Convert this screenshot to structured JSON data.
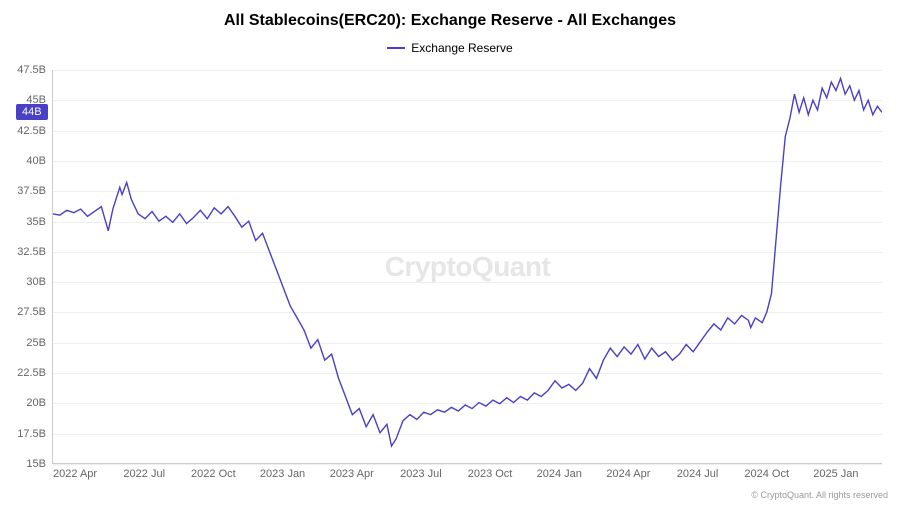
{
  "chart": {
    "type": "line",
    "title": "All Stablecoins(ERC20): Exchange Reserve - All Exchanges",
    "title_fontsize": 16,
    "title_color": "#000000",
    "legend": {
      "label": "Exchange Reserve",
      "color": "#4a3fc7",
      "position": "top-center"
    },
    "watermark": "CryptoQuant",
    "watermark_color": "#e6e6e6",
    "background_color": "#ffffff",
    "grid_color": "#eeeeee",
    "axis_color": "#cccccc",
    "tick_label_color": "#666666",
    "tick_fontsize": 11,
    "line_color": "#4a3fc7",
    "line_width": 1.4,
    "y_axis": {
      "min": 15,
      "max": 47.5,
      "unit_suffix": "B",
      "ticks": [
        15,
        17.5,
        20,
        22.5,
        25,
        27.5,
        30,
        32.5,
        35,
        37.5,
        40,
        42.5,
        45,
        47.5
      ],
      "tick_labels": [
        "15B",
        "17.5B",
        "20B",
        "22.5B",
        "25B",
        "27.5B",
        "30B",
        "32.5B",
        "35B",
        "37.5B",
        "40B",
        "42.5B",
        "45B",
        "47.5B"
      ]
    },
    "x_axis": {
      "min": 0,
      "max": 36,
      "ticks": [
        1,
        4,
        7,
        10,
        13,
        16,
        19,
        22,
        25,
        28,
        31,
        34
      ],
      "tick_labels": [
        "2022 Apr",
        "2022 Jul",
        "2022 Oct",
        "2023 Jan",
        "2023 Apr",
        "2023 Jul",
        "2023 Oct",
        "2024 Jan",
        "2024 Apr",
        "2024 Jul",
        "2024 Oct",
        "2025 Jan"
      ]
    },
    "current_value": {
      "label": "44B",
      "value": 44,
      "badge_color": "#4a3fc7",
      "text_color": "#ffffff"
    },
    "series": [
      {
        "x": 0.0,
        "y": 35.6
      },
      {
        "x": 0.3,
        "y": 35.5
      },
      {
        "x": 0.6,
        "y": 35.9
      },
      {
        "x": 0.9,
        "y": 35.7
      },
      {
        "x": 1.2,
        "y": 36.0
      },
      {
        "x": 1.5,
        "y": 35.4
      },
      {
        "x": 1.8,
        "y": 35.8
      },
      {
        "x": 2.1,
        "y": 36.2
      },
      {
        "x": 2.4,
        "y": 34.2
      },
      {
        "x": 2.6,
        "y": 36.0
      },
      {
        "x": 2.9,
        "y": 37.8
      },
      {
        "x": 3.0,
        "y": 37.2
      },
      {
        "x": 3.2,
        "y": 38.2
      },
      {
        "x": 3.4,
        "y": 36.8
      },
      {
        "x": 3.7,
        "y": 35.6
      },
      {
        "x": 4.0,
        "y": 35.2
      },
      {
        "x": 4.3,
        "y": 35.8
      },
      {
        "x": 4.6,
        "y": 35.0
      },
      {
        "x": 4.9,
        "y": 35.4
      },
      {
        "x": 5.2,
        "y": 34.9
      },
      {
        "x": 5.5,
        "y": 35.6
      },
      {
        "x": 5.8,
        "y": 34.8
      },
      {
        "x": 6.1,
        "y": 35.3
      },
      {
        "x": 6.4,
        "y": 35.9
      },
      {
        "x": 6.7,
        "y": 35.2
      },
      {
        "x": 7.0,
        "y": 36.1
      },
      {
        "x": 7.3,
        "y": 35.6
      },
      {
        "x": 7.6,
        "y": 36.2
      },
      {
        "x": 7.9,
        "y": 35.4
      },
      {
        "x": 8.2,
        "y": 34.5
      },
      {
        "x": 8.5,
        "y": 35.0
      },
      {
        "x": 8.8,
        "y": 33.4
      },
      {
        "x": 9.1,
        "y": 34.0
      },
      {
        "x": 9.4,
        "y": 32.5
      },
      {
        "x": 9.7,
        "y": 31.0
      },
      {
        "x": 10.0,
        "y": 29.5
      },
      {
        "x": 10.3,
        "y": 28.0
      },
      {
        "x": 10.6,
        "y": 27.0
      },
      {
        "x": 10.9,
        "y": 26.0
      },
      {
        "x": 11.2,
        "y": 24.5
      },
      {
        "x": 11.5,
        "y": 25.2
      },
      {
        "x": 11.8,
        "y": 23.5
      },
      {
        "x": 12.1,
        "y": 24.0
      },
      {
        "x": 12.4,
        "y": 22.0
      },
      {
        "x": 12.7,
        "y": 20.5
      },
      {
        "x": 13.0,
        "y": 19.0
      },
      {
        "x": 13.3,
        "y": 19.5
      },
      {
        "x": 13.6,
        "y": 18.0
      },
      {
        "x": 13.9,
        "y": 19.0
      },
      {
        "x": 14.2,
        "y": 17.5
      },
      {
        "x": 14.5,
        "y": 18.2
      },
      {
        "x": 14.7,
        "y": 16.4
      },
      {
        "x": 14.9,
        "y": 17.0
      },
      {
        "x": 15.2,
        "y": 18.5
      },
      {
        "x": 15.5,
        "y": 19.0
      },
      {
        "x": 15.8,
        "y": 18.6
      },
      {
        "x": 16.1,
        "y": 19.2
      },
      {
        "x": 16.4,
        "y": 19.0
      },
      {
        "x": 16.7,
        "y": 19.4
      },
      {
        "x": 17.0,
        "y": 19.2
      },
      {
        "x": 17.3,
        "y": 19.6
      },
      {
        "x": 17.6,
        "y": 19.3
      },
      {
        "x": 17.9,
        "y": 19.8
      },
      {
        "x": 18.2,
        "y": 19.5
      },
      {
        "x": 18.5,
        "y": 20.0
      },
      {
        "x": 18.8,
        "y": 19.7
      },
      {
        "x": 19.1,
        "y": 20.2
      },
      {
        "x": 19.4,
        "y": 19.9
      },
      {
        "x": 19.7,
        "y": 20.4
      },
      {
        "x": 20.0,
        "y": 20.0
      },
      {
        "x": 20.3,
        "y": 20.5
      },
      {
        "x": 20.6,
        "y": 20.2
      },
      {
        "x": 20.9,
        "y": 20.8
      },
      {
        "x": 21.2,
        "y": 20.5
      },
      {
        "x": 21.5,
        "y": 21.0
      },
      {
        "x": 21.8,
        "y": 21.8
      },
      {
        "x": 22.1,
        "y": 21.2
      },
      {
        "x": 22.4,
        "y": 21.5
      },
      {
        "x": 22.7,
        "y": 21.0
      },
      {
        "x": 23.0,
        "y": 21.6
      },
      {
        "x": 23.3,
        "y": 22.8
      },
      {
        "x": 23.6,
        "y": 22.0
      },
      {
        "x": 23.9,
        "y": 23.5
      },
      {
        "x": 24.2,
        "y": 24.5
      },
      {
        "x": 24.5,
        "y": 23.8
      },
      {
        "x": 24.8,
        "y": 24.6
      },
      {
        "x": 25.1,
        "y": 24.0
      },
      {
        "x": 25.4,
        "y": 24.8
      },
      {
        "x": 25.7,
        "y": 23.6
      },
      {
        "x": 26.0,
        "y": 24.5
      },
      {
        "x": 26.3,
        "y": 23.8
      },
      {
        "x": 26.6,
        "y": 24.2
      },
      {
        "x": 26.9,
        "y": 23.5
      },
      {
        "x": 27.2,
        "y": 24.0
      },
      {
        "x": 27.5,
        "y": 24.8
      },
      {
        "x": 27.8,
        "y": 24.2
      },
      {
        "x": 28.1,
        "y": 25.0
      },
      {
        "x": 28.4,
        "y": 25.8
      },
      {
        "x": 28.7,
        "y": 26.5
      },
      {
        "x": 29.0,
        "y": 26.0
      },
      {
        "x": 29.3,
        "y": 27.0
      },
      {
        "x": 29.6,
        "y": 26.5
      },
      {
        "x": 29.9,
        "y": 27.2
      },
      {
        "x": 30.2,
        "y": 26.8
      },
      {
        "x": 30.3,
        "y": 26.2
      },
      {
        "x": 30.5,
        "y": 27.0
      },
      {
        "x": 30.8,
        "y": 26.6
      },
      {
        "x": 31.0,
        "y": 27.5
      },
      {
        "x": 31.2,
        "y": 29.0
      },
      {
        "x": 31.4,
        "y": 33.5
      },
      {
        "x": 31.6,
        "y": 38.0
      },
      {
        "x": 31.8,
        "y": 42.0
      },
      {
        "x": 32.0,
        "y": 43.5
      },
      {
        "x": 32.2,
        "y": 45.5
      },
      {
        "x": 32.4,
        "y": 44.0
      },
      {
        "x": 32.6,
        "y": 45.2
      },
      {
        "x": 32.8,
        "y": 43.8
      },
      {
        "x": 33.0,
        "y": 45.0
      },
      {
        "x": 33.2,
        "y": 44.2
      },
      {
        "x": 33.4,
        "y": 46.0
      },
      {
        "x": 33.6,
        "y": 45.2
      },
      {
        "x": 33.8,
        "y": 46.5
      },
      {
        "x": 34.0,
        "y": 45.8
      },
      {
        "x": 34.2,
        "y": 46.8
      },
      {
        "x": 34.4,
        "y": 45.5
      },
      {
        "x": 34.6,
        "y": 46.2
      },
      {
        "x": 34.8,
        "y": 45.0
      },
      {
        "x": 35.0,
        "y": 45.8
      },
      {
        "x": 35.2,
        "y": 44.2
      },
      {
        "x": 35.4,
        "y": 45.0
      },
      {
        "x": 35.6,
        "y": 43.8
      },
      {
        "x": 35.8,
        "y": 44.5
      },
      {
        "x": 36.0,
        "y": 44.0
      }
    ]
  },
  "copyright": "© CryptoQuant. All rights reserved"
}
